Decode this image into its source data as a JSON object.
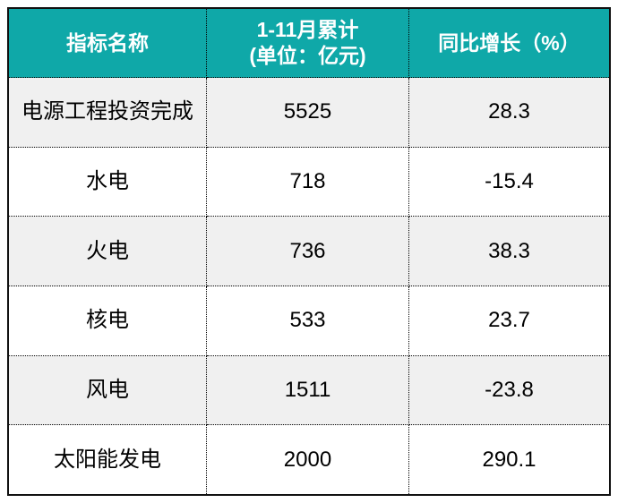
{
  "chart_data": {
    "type": "table",
    "columns": [
      "指标名称",
      "1-11月累计 (单位：亿元)",
      "同比增长（%）"
    ],
    "rows": [
      [
        "电源工程投资完成",
        5525,
        28.3
      ],
      [
        "水电",
        718,
        -15.4
      ],
      [
        "火电",
        736,
        38.3
      ],
      [
        "核电",
        533,
        23.7
      ],
      [
        "风电",
        1511,
        -23.8
      ],
      [
        "太阳能发电",
        2000,
        290.1
      ]
    ],
    "notes": "Header row teal with white bold text; data rows alternate light gray and white; dotted inner grid lines; solid black outer border"
  },
  "table": {
    "header": {
      "col1": "指标名称",
      "col2_line1": "1-11月累计",
      "col2_line2": "(单位：亿元)",
      "col3": "同比增长（%）"
    },
    "rows": [
      {
        "name": "电源工程投资完成",
        "value": "5525",
        "growth": "28.3"
      },
      {
        "name": "水电",
        "value": "718",
        "growth": "-15.4"
      },
      {
        "name": "火电",
        "value": "736",
        "growth": "38.3"
      },
      {
        "name": "核电",
        "value": "533",
        "growth": "23.7"
      },
      {
        "name": "风电",
        "value": "1511",
        "growth": "-23.8"
      },
      {
        "name": "太阳能发电",
        "value": "2000",
        "growth": "290.1"
      }
    ],
    "colors": {
      "header_bg": "#0FA8A8",
      "header_text": "#FFFFFF",
      "row_alt_bg": "#F0F0F0",
      "row_bg": "#FFFFFF",
      "body_text": "#000000",
      "border": "#000000"
    }
  }
}
